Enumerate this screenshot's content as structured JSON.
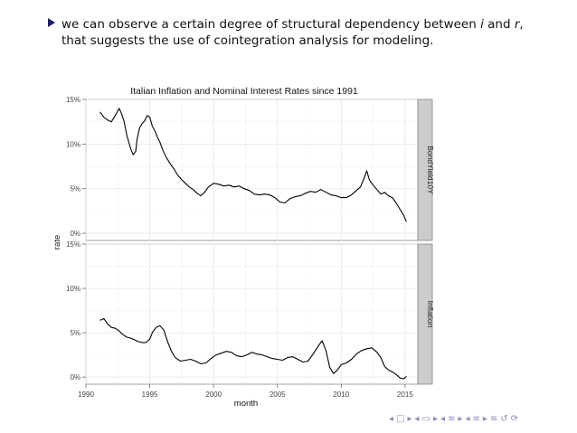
{
  "slide": {
    "bullet_line1_a": "we can observe a certain degree of structural dependency between ",
    "bullet_line1_var_i": "i",
    "bullet_line1_and": " and ",
    "bullet_line1_var_r": "r",
    "bullet_line1_end": ",",
    "bullet_line2": "that suggests the use of cointegration analysis for modeling."
  },
  "nav": {
    "symbols": [
      "◂",
      "□",
      "▸",
      "◂",
      "▭",
      "▸",
      "◂",
      "≡",
      "▸",
      "◂",
      "≡",
      "▸",
      "≡",
      "↺",
      "⟳"
    ]
  },
  "colors": {
    "strip_bg": "#cccccc",
    "grid": "#e4e4e4",
    "line": "#000000",
    "border": "#888888"
  },
  "chart_data": {
    "type": "line",
    "title": "Italian Inflation and Nominal Interest Rates since 1991",
    "xlabel": "month",
    "ylabel": "rate",
    "xlim": [
      1990,
      2016
    ],
    "x_ticks": [
      1990,
      1995,
      2000,
      2005,
      2010,
      2015
    ],
    "x_tick_labels": [
      "1990",
      "1995",
      "2000",
      "2005",
      "2010",
      "2015"
    ],
    "grid": true,
    "panels": [
      {
        "strip_label": "BondYield10Y",
        "ylim": [
          -0.8,
          15
        ],
        "y_ticks": [
          0,
          5,
          10,
          15
        ],
        "y_tick_labels": [
          "0%",
          "5%",
          "10%",
          "15%"
        ],
        "series": {
          "x": [
            1991.1,
            1991.4,
            1991.7,
            1992.0,
            1992.3,
            1992.6,
            1992.8,
            1993.0,
            1993.2,
            1993.5,
            1993.7,
            1993.9,
            1994.0,
            1994.2,
            1994.4,
            1994.6,
            1994.8,
            1995.0,
            1995.2,
            1995.4,
            1995.6,
            1995.8,
            1996.0,
            1996.3,
            1996.6,
            1996.9,
            1997.2,
            1997.5,
            1997.8,
            1998.1,
            1998.4,
            1998.7,
            1999.0,
            1999.3,
            1999.6,
            2000.0,
            2000.4,
            2000.8,
            2001.2,
            2001.6,
            2002.0,
            2002.4,
            2002.8,
            2003.2,
            2003.6,
            2004.0,
            2004.4,
            2004.8,
            2005.2,
            2005.6,
            2006.0,
            2006.4,
            2006.8,
            2007.2,
            2007.6,
            2008.0,
            2008.4,
            2008.8,
            2009.2,
            2009.6,
            2010.0,
            2010.4,
            2010.8,
            2011.2,
            2011.5,
            2011.8,
            2012.0,
            2012.2,
            2012.5,
            2012.8,
            2013.1,
            2013.4,
            2013.7,
            2014.0,
            2014.3,
            2014.6,
            2014.9,
            2015.1
          ],
          "y": [
            13.6,
            13.0,
            12.7,
            12.5,
            13.2,
            14.0,
            13.4,
            12.5,
            11.0,
            9.5,
            8.8,
            9.2,
            10.5,
            11.8,
            12.3,
            12.6,
            13.2,
            13.0,
            12.0,
            11.5,
            10.8,
            10.2,
            9.4,
            8.5,
            7.8,
            7.2,
            6.5,
            6.0,
            5.6,
            5.2,
            4.9,
            4.5,
            4.2,
            4.6,
            5.2,
            5.6,
            5.5,
            5.3,
            5.4,
            5.2,
            5.3,
            5.0,
            4.8,
            4.4,
            4.3,
            4.4,
            4.3,
            4.0,
            3.5,
            3.4,
            3.9,
            4.1,
            4.2,
            4.5,
            4.7,
            4.6,
            4.9,
            4.6,
            4.3,
            4.2,
            4.0,
            4.0,
            4.3,
            4.8,
            5.2,
            6.2,
            7.0,
            6.0,
            5.4,
            4.9,
            4.4,
            4.6,
            4.2,
            4.0,
            3.4,
            2.7,
            2.0,
            1.3
          ]
        }
      },
      {
        "strip_label": "Inflation",
        "ylim": [
          -0.8,
          15
        ],
        "y_ticks": [
          0,
          5,
          10,
          15
        ],
        "y_tick_labels": [
          "0%",
          "5%",
          "10%",
          "15%"
        ],
        "series": {
          "x": [
            1991.1,
            1991.4,
            1991.7,
            1992.0,
            1992.3,
            1992.6,
            1992.9,
            1993.2,
            1993.5,
            1993.8,
            1994.1,
            1994.4,
            1994.7,
            1995.0,
            1995.2,
            1995.5,
            1995.8,
            1996.1,
            1996.4,
            1996.7,
            1997.0,
            1997.4,
            1997.8,
            1998.2,
            1998.6,
            1999.0,
            1999.4,
            1999.8,
            2000.2,
            2000.6,
            2001.0,
            2001.4,
            2001.8,
            2002.2,
            2002.6,
            2003.0,
            2003.4,
            2003.8,
            2004.2,
            2004.6,
            2005.0,
            2005.4,
            2005.8,
            2006.2,
            2006.6,
            2007.0,
            2007.4,
            2007.8,
            2008.2,
            2008.5,
            2008.8,
            2009.1,
            2009.4,
            2009.7,
            2010.0,
            2010.4,
            2010.8,
            2011.2,
            2011.6,
            2012.0,
            2012.4,
            2012.8,
            2013.1,
            2013.4,
            2013.7,
            2014.0,
            2014.3,
            2014.6,
            2014.9,
            2015.1
          ],
          "y": [
            6.4,
            6.6,
            6.0,
            5.6,
            5.5,
            5.2,
            4.8,
            4.5,
            4.4,
            4.2,
            4.0,
            3.9,
            3.9,
            4.3,
            5.0,
            5.6,
            5.8,
            5.3,
            4.0,
            2.9,
            2.2,
            1.8,
            1.9,
            2.0,
            1.8,
            1.5,
            1.6,
            2.1,
            2.5,
            2.7,
            2.9,
            2.8,
            2.4,
            2.3,
            2.5,
            2.8,
            2.6,
            2.5,
            2.3,
            2.1,
            2.0,
            1.9,
            2.2,
            2.3,
            2.0,
            1.7,
            1.8,
            2.6,
            3.5,
            4.1,
            3.0,
            1.1,
            0.4,
            0.8,
            1.4,
            1.6,
            2.0,
            2.6,
            3.0,
            3.2,
            3.3,
            2.8,
            2.2,
            1.2,
            0.8,
            0.6,
            0.3,
            -0.1,
            -0.2,
            0.1
          ]
        }
      }
    ]
  }
}
